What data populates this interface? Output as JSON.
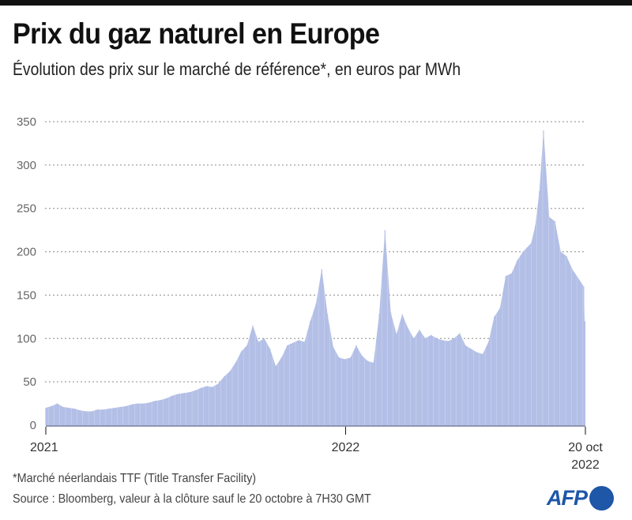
{
  "header": {
    "title": "Prix du gaz naturel en Europe",
    "subtitle": "Évolution des prix sur le marché de référence*, en euros par MWh"
  },
  "footer": {
    "note": "*Marché néerlandais TTF (Title Transfer Facility)",
    "source": "Source : Bloomberg, valeur à la clôture sauf le 20 octobre à 7H30 GMT",
    "logo_text": "AFP"
  },
  "colors": {
    "bar": "#b3bfe6",
    "gridline": "#8a8a8a",
    "baseline": "#8f96b3",
    "logo": "#1e56a8"
  },
  "chart_data": {
    "type": "bar",
    "title": "Prix du gaz naturel en Europe",
    "subtitle": "Évolution des prix sur le marché de référence*, en euros par MWh",
    "xlabel": "",
    "ylabel": "euros par MWh",
    "ylim": [
      0,
      350
    ],
    "yticks": [
      0,
      50,
      100,
      150,
      200,
      250,
      300,
      350
    ],
    "ytick_labels": [
      "0",
      "50",
      "100",
      "150",
      "200",
      "250",
      "300",
      "350"
    ],
    "grid": true,
    "legend": "none",
    "xticks": [
      {
        "label": "2021",
        "date": "2021-01-01"
      },
      {
        "label": "2022",
        "date": "2022-01-01"
      },
      {
        "label": "20 oct\n2022",
        "line1": "20 oct",
        "line2": "2022",
        "date": "2022-10-20"
      }
    ],
    "x_start": "2021-01-01",
    "x_end": "2022-10-20",
    "series": [
      {
        "name": "TTF (euros/MWh)",
        "x_days": [
          0,
          7,
          14,
          21,
          28,
          35,
          42,
          49,
          56,
          63,
          70,
          77,
          84,
          91,
          98,
          105,
          112,
          119,
          126,
          133,
          140,
          147,
          154,
          161,
          168,
          175,
          182,
          189,
          196,
          203,
          210,
          217,
          224,
          231,
          238,
          245,
          252,
          259,
          266,
          273,
          280,
          287,
          294,
          301,
          308,
          315,
          322,
          329,
          336,
          343,
          350,
          357,
          364,
          371,
          378,
          385,
          392,
          399,
          406,
          413,
          420,
          427,
          434,
          441,
          448,
          455,
          462,
          469,
          476,
          483,
          490,
          497,
          504,
          511,
          518,
          525,
          532,
          539,
          546,
          553,
          560,
          567,
          574,
          581,
          586,
          591,
          596,
          601,
          606,
          613,
          620,
          627,
          634,
          641,
          648,
          655
        ],
        "values": [
          20,
          22,
          25,
          21,
          20,
          19,
          17,
          16,
          16,
          18,
          18,
          19,
          20,
          21,
          22,
          24,
          25,
          25,
          26,
          28,
          29,
          31,
          34,
          36,
          37,
          38,
          40,
          43,
          45,
          44,
          48,
          56,
          62,
          72,
          85,
          92,
          115,
          96,
          100,
          88,
          68,
          78,
          92,
          95,
          98,
          96,
          120,
          140,
          180,
          128,
          90,
          78,
          76,
          78,
          92,
          80,
          74,
          72,
          128,
          225,
          130,
          105,
          128,
          112,
          100,
          110,
          100,
          104,
          100,
          98,
          97,
          100,
          106,
          92,
          88,
          84,
          82,
          96,
          125,
          135,
          172,
          175,
          190,
          200,
          205,
          210,
          230,
          270,
          340,
          240,
          235,
          200,
          195,
          180,
          170,
          160,
          120
        ]
      }
    ]
  }
}
